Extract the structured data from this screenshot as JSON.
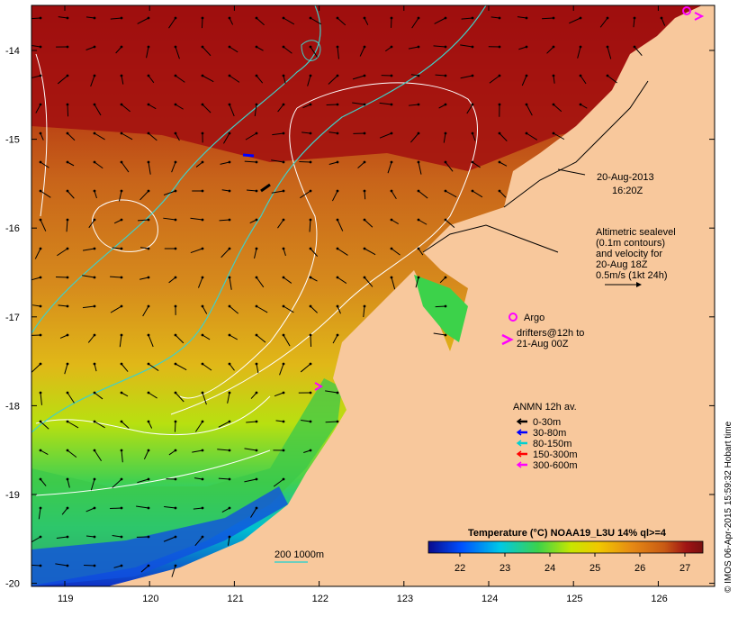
{
  "map": {
    "date_label": "20-Aug-2013",
    "time_label": "16:20Z",
    "altimetry_note": [
      "Altimetric sealevel",
      "(0.1m contours)",
      "and velocity for",
      "20-Aug 18Z",
      "0.5m/s (1kt 24h)"
    ],
    "argo_label": "Argo",
    "drifters_label": [
      "drifters@12h to",
      "21-Aug 00Z"
    ],
    "bathymetry_label": "200  1000m",
    "anmn": {
      "title": "ANMN 12h av.",
      "items": [
        {
          "label": "0-30m",
          "color": "#000000"
        },
        {
          "label": "30-80m",
          "color": "#0000ff"
        },
        {
          "label": "80-150m",
          "color": "#00d0d0"
        },
        {
          "label": "150-300m",
          "color": "#ff0000"
        },
        {
          "label": "300-600m",
          "color": "#ff00ff"
        }
      ]
    },
    "colorbar": {
      "title": "Temperature (°C) NOAA19_L3U 14% ql>=4",
      "ticks": [
        "22",
        "23",
        "24",
        "25",
        "26",
        "27"
      ],
      "min": 21.3,
      "max": 27.4,
      "colors": [
        "#0a0a8c",
        "#0050ff",
        "#00c8e6",
        "#3cd24a",
        "#c8e600",
        "#f0c800",
        "#e68a14",
        "#c85a14",
        "#a01414",
        "#781010"
      ]
    },
    "axes": {
      "lon_ticks": [
        "119",
        "120",
        "121",
        "122",
        "123",
        "124",
        "125",
        "126"
      ],
      "lat_ticks": [
        "-14",
        "-15",
        "-16",
        "-17",
        "-18",
        "-19",
        "-20"
      ]
    },
    "colors": {
      "land": "#f8c89c",
      "hot": "#a20f0f",
      "contour": "#ffffff",
      "isobath": "#40d0c8",
      "argo": "#ff00ff"
    },
    "credit": "© IMOS 06-Apr-2015 15:59:32 Hobart time"
  }
}
